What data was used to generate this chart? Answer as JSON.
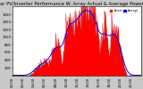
{
  "title": "Solar PV/Inverter Performance W. Array Actual & Average Power Output",
  "title_fontsize": 3.8,
  "background_color": "#c8c8c8",
  "plot_bg_color": "#ffffff",
  "fill_color": "#ff0000",
  "line_color": "#cc0000",
  "avg_line_color": "#0000ff",
  "grid_color": "#ffffff",
  "legend_actual_color": "#ff0000",
  "legend_avg_color": "#0000ff",
  "legend_label_actual": "Actual",
  "legend_label_avg": "Average",
  "tick_fontsize": 2.8,
  "ylim": [
    0,
    1800
  ],
  "yticks": [
    200,
    400,
    600,
    800,
    1000,
    1200,
    1400,
    1600
  ],
  "num_points": 288,
  "peak_index": 165,
  "peak_value": 1750,
  "dashed_grid_x": [
    48,
    96,
    144,
    192,
    240
  ],
  "dashed_grid_y": [
    200,
    400,
    600,
    800,
    1000,
    1200,
    1400,
    1600
  ]
}
